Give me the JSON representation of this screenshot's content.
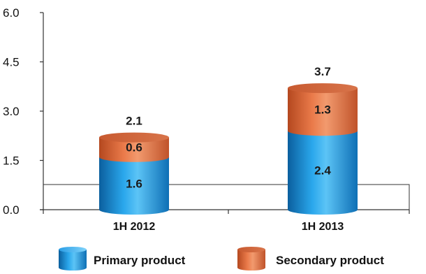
{
  "chart_data": {
    "type": "bar",
    "stacked": true,
    "style": "3d-cylinder",
    "categories": [
      "1H 2012",
      "1H 2013"
    ],
    "series": [
      {
        "name": "Primary product",
        "values": [
          1.6,
          2.4
        ],
        "color": "#1c8fd6"
      },
      {
        "name": "Secondary product",
        "values": [
          0.6,
          1.3
        ],
        "color": "#e2693a"
      }
    ],
    "totals": [
      2.1,
      3.7
    ],
    "segment_labels": [
      [
        "1.6",
        "0.6"
      ],
      [
        "2.4",
        "1.3"
      ]
    ],
    "total_labels": [
      "2.1",
      "3.7"
    ],
    "yticks": [
      "0.0",
      "1.5",
      "3.0",
      "4.5",
      "6.0"
    ],
    "ylim": [
      0,
      6
    ],
    "legend_position": "bottom",
    "grid": false
  }
}
